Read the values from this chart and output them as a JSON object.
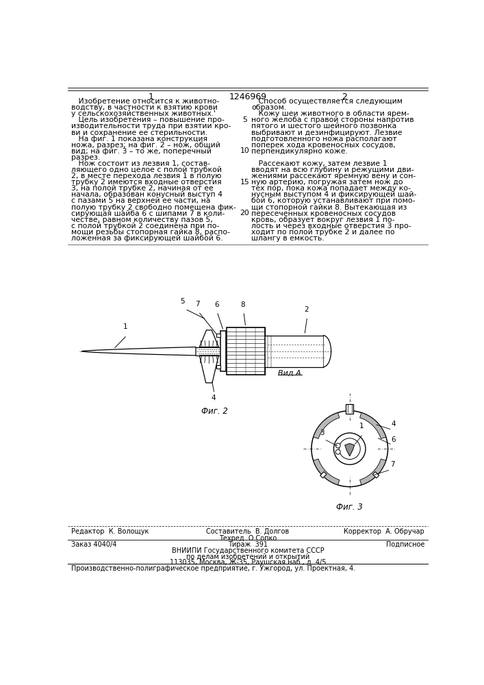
{
  "patent_number": "1246969",
  "col1_num": "1",
  "col2_num": "2",
  "col1_text": [
    "   Изобретение относится к животно-",
    "водству, в частности к взятию крови",
    "у сельскохозяйственных животных.'",
    "   Цель изобретения – повышение про-",
    "изводительности труда при взятии кро-",
    "ви и сохранение ее стерильности.",
    "   На фиг. 1 показана конструкция",
    "ножа, разрез; на фиг. 2 – нож, общий",
    "вид; на фиг. 3 – то же, поперечный",
    "разрез.",
    "   Нож состоит из лезвия 1, состав-",
    "ляющего одно целое с полой трубкой",
    "2, в месте перехода лезвия 1 в полую",
    "трубку 2 имеются входные отверстия",
    "3, на полой трубке 2, начиная от ее",
    "начала, образован конусный выступ 4",
    "с пазами 5 на верхней ее части, на",
    "полую трубку 2 свободно помещена фик-",
    "сирующая шайба 6 с шипами 7 в коли-",
    "честве, равном количеству пазов 5,",
    "с полой трубкой 2 соединена при по-",
    "мощи резьбы стопорная гайка 8, распо-",
    "ложенная за фиксирующей шайбой 6."
  ],
  "col2_text": [
    "   Способ осуществляется следующим",
    "образом.",
    "   Кожу шеи животного в области ярем-",
    "ного желоба с правой стороны напротив",
    "пятого и шестого шейного позвонка",
    "выбривают и дезинфицируют. Лезвие",
    "подготовленного ножа располагают",
    "поперек хода кровеносных сосудов,",
    "перпендикулярно коже.",
    "",
    "   Рассекают кожу, затем лезвие 1",
    "вводят на всю глубину и режущими дви-",
    "жениями рассекают яремную вену и сон-",
    "ную артерию, погружая затем нож до",
    "тех пор, пока кожа попадает между ко-",
    "нусным выступом 4 и фиксирующей шай-",
    "бой 6, которую устанавливают при помо-",
    "щи стопорной гайки 8. Вытекающая из",
    "пересеченных кровеносных сосудов",
    "кровь, образует вокруг лезвия 1 по-",
    "лость и через входные отверстия 3 про-",
    "ходит по полой трубке 2 и далее по",
    "шлангу в емкость."
  ],
  "line_numbers": [
    "5",
    "10",
    "15",
    "20"
  ],
  "line_number_rows": [
    4,
    9,
    14,
    19
  ],
  "footer_line1_left": "Редактор  К. Волощук",
  "footer_line1_center": "Составитель  В. Долгов",
  "footer_line2_center": "Техред  О.Сопко",
  "footer_line1_right": "Корректор  А. Обручар",
  "footer_zakaz": "Заказ 4040/4",
  "footer_tirazh": "Тираж  391",
  "footer_podpisnoe": "Подписное",
  "footer_vniipи": "ВНИИПИ Государственного комитета СССР",
  "footer_po_delam": "по делам изобретений и открытий",
  "footer_address": "113035, Москва, Ж-35, Раушская наб., д. 4/5",
  "footer_last": "Производственно-полиграфическое предприятие, г. Ужгород, ул. Проектная, 4.",
  "bg_color": "#ffffff",
  "text_color": "#000000",
  "font_size_body": 7.8,
  "font_size_header": 9.0,
  "font_size_footer": 7.0,
  "font_size_fig_label": 8.5
}
